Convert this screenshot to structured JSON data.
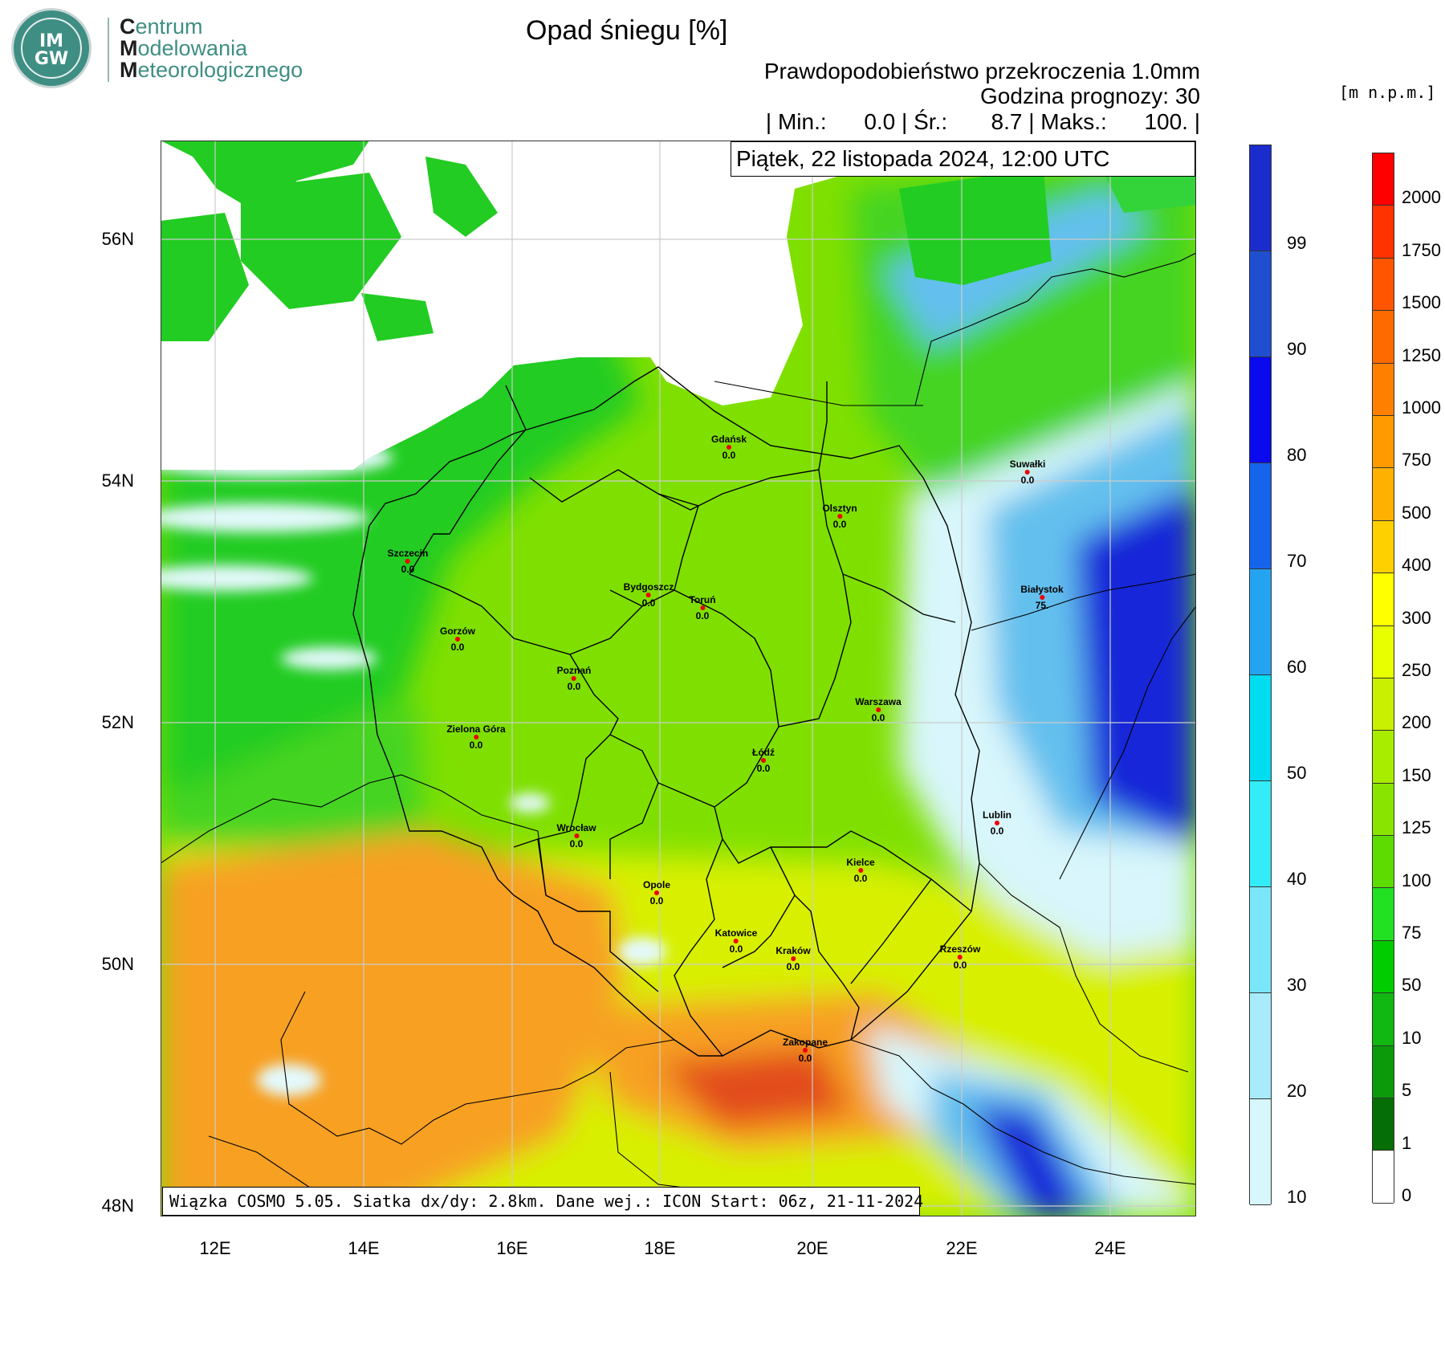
{
  "logo": {
    "badge_line1": "IM",
    "badge_line2": "GW",
    "name_line1_initial": "C",
    "name_line1_rest": "entrum",
    "name_line2_initial": "M",
    "name_line2_rest": "odelowania",
    "name_line3_initial": "M",
    "name_line3_rest": "eteorologicznego"
  },
  "header": {
    "title": "Opad śniegu [%]",
    "subtitle1": "Prawdopodobieństwo przekroczenia 1.0mm",
    "subtitle2": "Godzina prognozy: 30",
    "stats": "| Min.:      0.0 | Śr.:       8.7 | Maks.:      100. |",
    "unit": "[m n.p.m.]"
  },
  "map": {
    "date": "Piątek, 22 listopada 2024, 12:00 UTC",
    "footer": "Wiązka COSMO 5.05. Siatka dx/dy: 2.8km. Dane wej.: ICON Start: 06z, 21-11-2024",
    "lat_labels": [
      "56N",
      "54N",
      "52N",
      "50N",
      "48N"
    ],
    "lon_labels": [
      "12E",
      "14E",
      "16E",
      "18E",
      "20E",
      "22E",
      "24E"
    ],
    "colors": {
      "sea": "#ffffff",
      "lowland_green": "#22cc22",
      "plain_lime": "#7fe000",
      "upland_yellow": "#d8f000",
      "mountain_orange": "#f7a020",
      "peak_red": "#e24b1a",
      "snow_light": "#d8f6fb",
      "snow_mid": "#63c0ee",
      "snow_dark": "#1228d8"
    }
  },
  "cities": [
    {
      "name": "Gdańsk",
      "value": "0.0"
    },
    {
      "name": "Suwałki",
      "value": "0.0"
    },
    {
      "name": "Olsztyn",
      "value": "0.0"
    },
    {
      "name": "Szczecin",
      "value": "0.0"
    },
    {
      "name": "Bydgoszcz",
      "value": "0.0"
    },
    {
      "name": "Toruń",
      "value": "0.0"
    },
    {
      "name": "Białystok",
      "value": "75."
    },
    {
      "name": "Gorzów",
      "value": "0.0"
    },
    {
      "name": "Poznań",
      "value": "0.0"
    },
    {
      "name": "Warszawa",
      "value": "0.0"
    },
    {
      "name": "Zielona Góra",
      "value": "0.0"
    },
    {
      "name": "Łódź",
      "value": "0.0"
    },
    {
      "name": "Lublin",
      "value": "0.0"
    },
    {
      "name": "Wrocław",
      "value": "0.0"
    },
    {
      "name": "Kielce",
      "value": "0.0"
    },
    {
      "name": "Opole",
      "value": "0.0"
    },
    {
      "name": "Katowice",
      "value": "0.0"
    },
    {
      "name": "Kraków",
      "value": "0.0"
    },
    {
      "name": "Rzeszów",
      "value": "0.0"
    },
    {
      "name": "Zakopane",
      "value": "0.0"
    }
  ],
  "snow_legend": {
    "labels": [
      "99",
      "90",
      "80",
      "70",
      "60",
      "50",
      "40",
      "30",
      "20",
      "10"
    ],
    "colors": [
      "#1a2ccc",
      "#1f4fcf",
      "#0a0aee",
      "#1664ec",
      "#24a4f0",
      "#00dcf0",
      "#33ecf7",
      "#7ae6fa",
      "#a8ecfb",
      "#d7f7fc"
    ]
  },
  "terrain_legend": {
    "labels": [
      "2000",
      "1750",
      "1500",
      "1250",
      "1000",
      "750",
      "500",
      "400",
      "300",
      "250",
      "200",
      "150",
      "125",
      "100",
      "75",
      "50",
      "10",
      "5",
      "1",
      "0"
    ],
    "colors": [
      "#ff0000",
      "#ff3300",
      "#ff5500",
      "#ff6a00",
      "#ff8000",
      "#ff9a00",
      "#ffb000",
      "#ffd000",
      "#ffff00",
      "#e8ff00",
      "#c8f000",
      "#a8ec00",
      "#88e400",
      "#5cdc00",
      "#22e022",
      "#00cc00",
      "#11b811",
      "#0a9a0a",
      "#066e06",
      "#ffffff"
    ]
  }
}
